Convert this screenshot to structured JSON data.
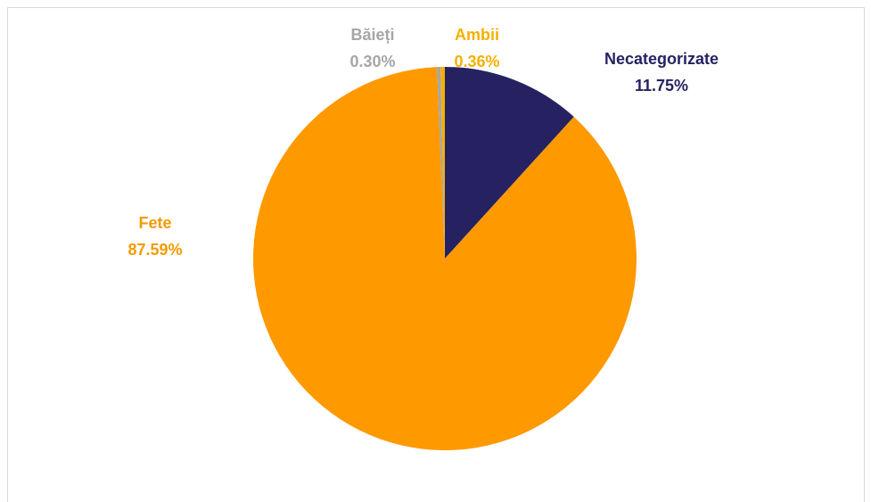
{
  "chart_data": {
    "type": "pie",
    "categories": [
      "Necategorizate",
      "Fete",
      "Băieți",
      "Ambii"
    ],
    "values": [
      11.75,
      87.59,
      0.3,
      0.36
    ],
    "value_labels": [
      "11.75%",
      "87.59%",
      "0.30%",
      "0.36%"
    ],
    "colors": [
      "#262262",
      "#ff9900",
      "#a6a6a6",
      "#f5b000"
    ],
    "label_colors": [
      "#262262",
      "#f49b00",
      "#a6a6a6",
      "#f5b000"
    ]
  }
}
